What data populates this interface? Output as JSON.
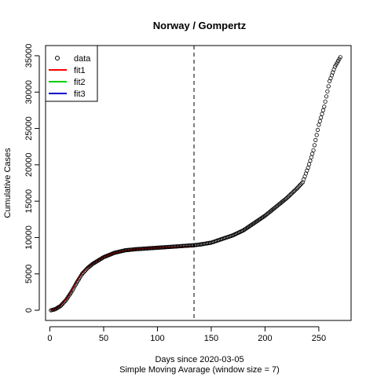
{
  "chart_data": {
    "type": "scatter",
    "title": "Norway / Gompertz",
    "xlabel": "Days since 2020-03-05",
    "xlabel2": "Simple Moving Avarage (window size = 7)",
    "ylabel": "Cumulative Cases",
    "xlim": [
      -4,
      280
    ],
    "ylim": [
      -1400,
      36400
    ],
    "xticks": [
      0,
      50,
      100,
      150,
      200,
      250
    ],
    "yticks": [
      0,
      5000,
      10000,
      15000,
      20000,
      25000,
      30000,
      35000
    ],
    "vline_x": 134,
    "legend_position": "top-left",
    "legend": [
      {
        "label": "data",
        "type": "point",
        "color": "#000000"
      },
      {
        "label": "fit1",
        "type": "line",
        "color": "#ff0000"
      },
      {
        "label": "fit2",
        "type": "line",
        "color": "#00cd00"
      },
      {
        "label": "fit3",
        "type": "line",
        "color": "#0000cd"
      }
    ],
    "curve_knots": {
      "x": [
        1,
        5,
        10,
        15,
        20,
        25,
        30,
        35,
        40,
        50,
        60,
        70,
        80,
        90,
        100,
        110,
        120,
        134,
        140,
        150,
        160,
        170,
        180,
        190,
        200,
        210,
        220,
        230,
        235,
        240,
        245,
        250,
        255,
        260,
        265,
        270
      ],
      "y": [
        0,
        150,
        600,
        1400,
        2500,
        3800,
        5000,
        5800,
        6400,
        7300,
        7900,
        8250,
        8400,
        8500,
        8600,
        8700,
        8800,
        8950,
        9050,
        9300,
        9800,
        10300,
        11000,
        12000,
        13000,
        14200,
        15400,
        16800,
        17600,
        19600,
        22000,
        25500,
        28000,
        31500,
        33500,
        34800
      ]
    },
    "fit_knots": {
      "x": [
        1,
        5,
        10,
        15,
        20,
        25,
        30,
        35,
        40,
        50,
        60,
        70,
        80,
        90,
        100,
        110,
        120,
        134
      ],
      "y": [
        0,
        200,
        700,
        1500,
        2700,
        4100,
        5200,
        5950,
        6500,
        7350,
        7900,
        8200,
        8400,
        8500,
        8600,
        8650,
        8700,
        8750
      ]
    }
  }
}
